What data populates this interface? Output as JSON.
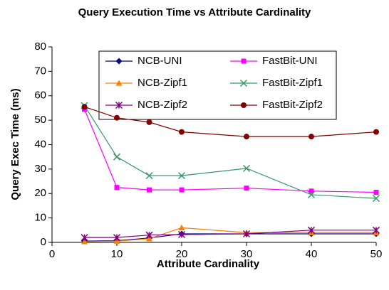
{
  "chart_data": {
    "type": "line",
    "title": "Query Execution Time vs Attribute Cardinality",
    "xlabel": "Attribute Cardinality",
    "ylabel": "Query Exec Time (ms)",
    "x": [
      5,
      10,
      15,
      20,
      30,
      40,
      50
    ],
    "xlim": [
      0,
      50
    ],
    "xticks": [
      0,
      10,
      20,
      30,
      40,
      50
    ],
    "ylim": [
      0,
      80
    ],
    "yticks": [
      0,
      10,
      20,
      30,
      40,
      50,
      60,
      70,
      80
    ],
    "grid": false,
    "legend": "top",
    "series": [
      {
        "name": "NCB-UNI",
        "color": "#000080",
        "marker": "diamond",
        "values": [
          0.5,
          0.7,
          1.8,
          3.5,
          3.5,
          3.5,
          3.5
        ]
      },
      {
        "name": "FastBit-UNI",
        "color": "#ff00ff",
        "marker": "square",
        "values": [
          54.5,
          22.5,
          21.5,
          21.5,
          22.2,
          21,
          20.5
        ]
      },
      {
        "name": "NCB-Zipf1",
        "color": "#ff8000",
        "marker": "triangle",
        "values": [
          0.3,
          0.5,
          1.5,
          6,
          4,
          4,
          4
        ]
      },
      {
        "name": "FastBit-Zipf1",
        "color": "#339966",
        "marker": "x",
        "values": [
          56,
          35,
          27.3,
          27.3,
          30.3,
          19.5,
          18
        ]
      },
      {
        "name": "NCB-Zipf2",
        "color": "#800080",
        "marker": "star",
        "values": [
          2,
          2,
          3,
          3.2,
          3.5,
          5,
          5
        ]
      },
      {
        "name": "FastBit-Zipf2",
        "color": "#800000",
        "marker": "circle",
        "values": [
          55.5,
          51,
          49.2,
          45.2,
          43.3,
          43.3,
          45.2
        ]
      }
    ]
  }
}
